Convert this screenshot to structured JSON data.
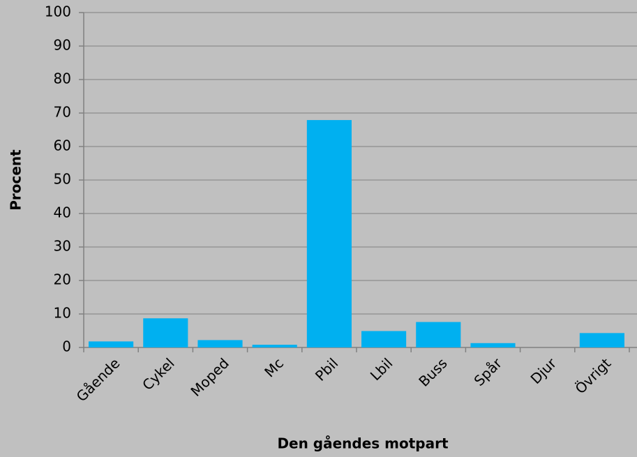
{
  "chart_data": {
    "type": "bar",
    "x_label": "Den gåendes motpart",
    "y_label": "Procent",
    "categories": [
      "Gående",
      "Cykel",
      "Moped",
      "Mc",
      "Pbil",
      "Lbil",
      "Buss",
      "Spår",
      "Djur",
      "Övrigt"
    ],
    "values": [
      1.8,
      8.7,
      2.2,
      0.8,
      67.9,
      4.9,
      7.6,
      1.3,
      0,
      4.3
    ],
    "color": "#00b0f0",
    "ylim": [
      0,
      100
    ],
    "yticks": [
      0,
      10,
      20,
      30,
      40,
      50,
      60,
      70,
      80,
      90,
      100
    ],
    "grid": true
  }
}
